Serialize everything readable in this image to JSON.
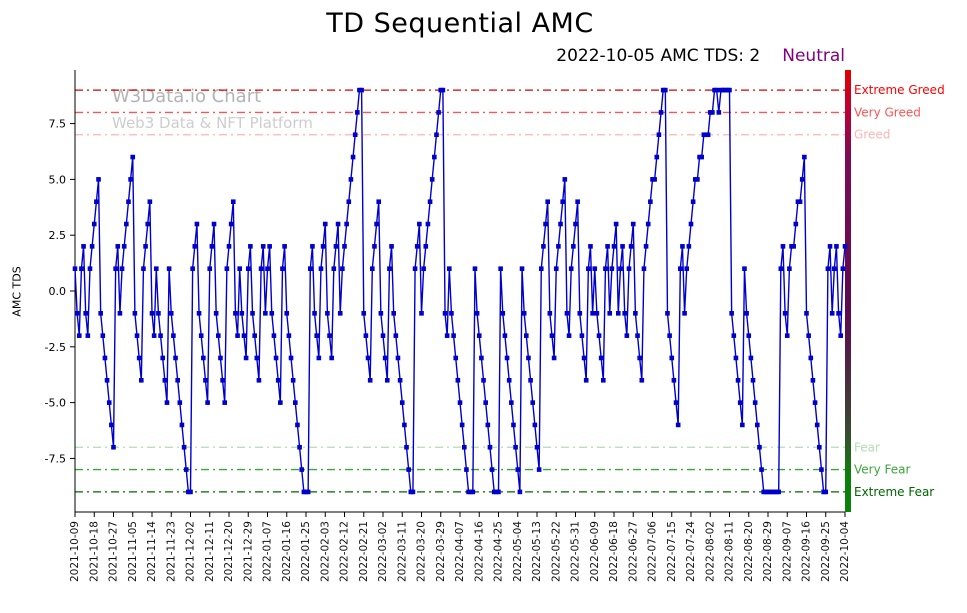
{
  "title": "TD Sequential AMC",
  "subtitle": {
    "status": "2022-10-05 AMC TDS: 2",
    "sentiment": "Neutral",
    "sentiment_color": "#800080"
  },
  "watermark": {
    "line1": "W3Data.io Chart",
    "line2": "Web3 Data & NFT Platform"
  },
  "chart_data": {
    "type": "line",
    "title": "TD Sequential AMC",
    "xlabel": "",
    "ylabel": "AMC TDS",
    "ylim": [
      -9.9,
      9.9
    ],
    "grid": false,
    "legend_position": "none",
    "y_ticks": [
      7.5,
      5.0,
      2.5,
      0.0,
      -2.5,
      -5.0,
      -7.5
    ],
    "x_tick_labels": [
      "2021-10-09",
      "2021-10-18",
      "2021-10-27",
      "2021-11-05",
      "2021-11-14",
      "2021-11-23",
      "2021-12-02",
      "2021-12-11",
      "2021-12-20",
      "2021-12-29",
      "2022-01-07",
      "2022-01-16",
      "2022-01-25",
      "2022-02-03",
      "2022-02-12",
      "2022-02-21",
      "2022-03-02",
      "2022-03-11",
      "2022-03-20",
      "2022-03-29",
      "2022-04-07",
      "2022-04-16",
      "2022-04-25",
      "2022-05-04",
      "2022-05-13",
      "2022-05-22",
      "2022-05-31",
      "2022-06-09",
      "2022-06-18",
      "2022-06-27",
      "2022-07-06",
      "2022-07-15",
      "2022-07-24",
      "2022-08-02",
      "2022-08-11",
      "2022-08-20",
      "2022-08-29",
      "2022-09-07",
      "2022-09-16",
      "2022-09-25",
      "2022-10-04"
    ],
    "start_date": "2021-10-09",
    "series": [
      {
        "name": "AMC TDS",
        "color": "#0000cd",
        "marker": "square",
        "values": [
          1,
          -1,
          -2,
          1,
          2,
          -1,
          -2,
          1,
          2,
          3,
          4,
          5,
          -1,
          -2,
          -3,
          -4,
          -5,
          -6,
          -7,
          1,
          2,
          -1,
          1,
          2,
          3,
          4,
          5,
          6,
          -1,
          -2,
          -3,
          -4,
          1,
          2,
          3,
          4,
          -1,
          -2,
          1,
          -1,
          -2,
          -3,
          -4,
          -5,
          1,
          -1,
          -2,
          -3,
          -4,
          -5,
          -6,
          -7,
          -8,
          -9,
          -9,
          1,
          2,
          3,
          -1,
          -2,
          -3,
          -4,
          -5,
          1,
          2,
          3,
          -1,
          -2,
          -3,
          -4,
          -5,
          1,
          2,
          3,
          4,
          -1,
          -2,
          1,
          -1,
          -2,
          -3,
          1,
          2,
          -1,
          -2,
          -3,
          -4,
          1,
          2,
          -1,
          1,
          2,
          -1,
          -2,
          -3,
          -4,
          -5,
          1,
          2,
          -1,
          -2,
          -3,
          -4,
          -5,
          -6,
          -7,
          -8,
          -9,
          -9,
          -9,
          1,
          2,
          -1,
          -2,
          -3,
          1,
          2,
          3,
          -1,
          -2,
          -3,
          1,
          2,
          3,
          -1,
          1,
          2,
          3,
          4,
          5,
          6,
          7,
          8,
          9,
          9,
          -1,
          -2,
          -3,
          -4,
          1,
          2,
          3,
          4,
          -1,
          -2,
          -3,
          -4,
          1,
          2,
          -1,
          -2,
          -3,
          -4,
          -5,
          -6,
          -7,
          -8,
          -9,
          -9,
          1,
          2,
          3,
          -1,
          1,
          2,
          3,
          4,
          5,
          6,
          7,
          8,
          9,
          9,
          -1,
          -2,
          1,
          -1,
          -2,
          -3,
          -4,
          -5,
          -6,
          -7,
          -8,
          -9,
          -9,
          -9,
          1,
          -1,
          -2,
          -3,
          -4,
          -5,
          -6,
          -7,
          -8,
          -9,
          -9,
          -9,
          1,
          -1,
          -2,
          -3,
          -4,
          -5,
          -6,
          -7,
          -8,
          -9,
          1,
          -1,
          -2,
          -3,
          -4,
          -5,
          -6,
          -7,
          -8,
          1,
          2,
          3,
          4,
          -1,
          -2,
          -3,
          1,
          2,
          3,
          4,
          5,
          -1,
          -2,
          1,
          2,
          3,
          4,
          -1,
          -2,
          -3,
          -4,
          1,
          2,
          -1,
          1,
          -1,
          -2,
          -3,
          -4,
          1,
          2,
          -1,
          1,
          2,
          3,
          -1,
          1,
          2,
          -1,
          -2,
          1,
          2,
          3,
          -1,
          -2,
          -3,
          -4,
          1,
          2,
          3,
          4,
          5,
          5,
          6,
          7,
          8,
          9,
          9,
          -1,
          -2,
          -3,
          -4,
          -5,
          -6,
          1,
          2,
          -1,
          1,
          2,
          3,
          4,
          5,
          5,
          6,
          6,
          7,
          7,
          7,
          8,
          8,
          9,
          9,
          8,
          9,
          9,
          9,
          9,
          9,
          -1,
          -2,
          -3,
          -4,
          -5,
          -6,
          1,
          -1,
          -2,
          -3,
          -4,
          -5,
          -6,
          -7,
          -8,
          -9,
          -9,
          -9,
          -9,
          -9,
          -9,
          -9,
          -9,
          1,
          2,
          -1,
          -2,
          1,
          2,
          2,
          3,
          4,
          4,
          5,
          6,
          -1,
          -2,
          -3,
          -4,
          -5,
          -6,
          -7,
          -8,
          -9,
          -9,
          1,
          2,
          -1,
          1,
          2,
          -1,
          -2,
          1,
          2
        ]
      }
    ],
    "thresholds": [
      {
        "value": 9,
        "label": "Extreme Greed",
        "line_color": "#d40000",
        "label_color": "#ff0000"
      },
      {
        "value": 8,
        "label": "Very Greed",
        "line_color": "#ff5252",
        "label_color": "#ff5252"
      },
      {
        "value": 7,
        "label": "Greed",
        "line_color": "#ffb3b3",
        "label_color": "#ffb3b3"
      },
      {
        "value": -7,
        "label": "Fear",
        "line_color": "#b3ddb3",
        "label_color": "#b3ddb3"
      },
      {
        "value": -8,
        "label": "Very Fear",
        "line_color": "#3aa63a",
        "label_color": "#3aa63a"
      },
      {
        "value": -9,
        "label": "Extreme Fear",
        "line_color": "#006600",
        "label_color": "#006600"
      }
    ],
    "right_bar_gradient": [
      {
        "offset": 0.0,
        "color": "#e00000"
      },
      {
        "offset": 0.08,
        "color": "#c00030"
      },
      {
        "offset": 0.2,
        "color": "#7a0d55"
      },
      {
        "offset": 0.55,
        "color": "#5c0a50"
      },
      {
        "offset": 0.82,
        "color": "#3a4a30"
      },
      {
        "offset": 0.92,
        "color": "#0a820a"
      },
      {
        "offset": 1.0,
        "color": "#0a820a"
      }
    ]
  }
}
